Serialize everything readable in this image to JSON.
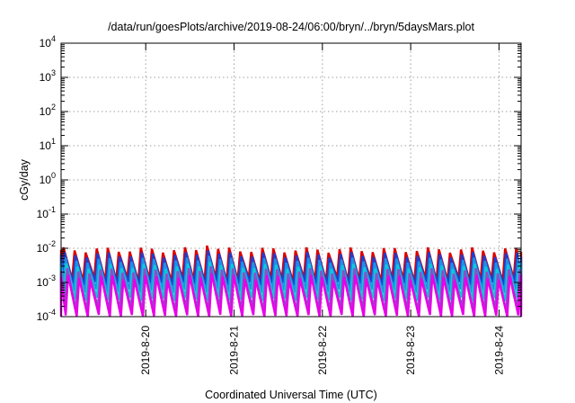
{
  "chart_data": {
    "type": "line",
    "title": "/data/run/goesPlots/archive/2019-08-24/06:00/bryn/../bryn/5daysMars.plot",
    "xlabel": "Coordinated Universal Time (UTC)",
    "ylabel": "cGy/day",
    "x_tick_labels": [
      "2019-8-20",
      "2019-8-21",
      "2019-8-22",
      "2019-8-23",
      "2019-8-24"
    ],
    "y_ticks": [
      {
        "base": "10",
        "exp": "-4"
      },
      {
        "base": "10",
        "exp": "-3"
      },
      {
        "base": "10",
        "exp": "-2"
      },
      {
        "base": "10",
        "exp": "-1"
      },
      {
        "base": "10",
        "exp": "0"
      },
      {
        "base": "10",
        "exp": "1"
      },
      {
        "base": "10",
        "exp": "2"
      },
      {
        "base": "10",
        "exp": "3"
      },
      {
        "base": "10",
        "exp": "4"
      }
    ],
    "yscale": "log",
    "ylim": [
      0.0001,
      10000
    ],
    "xlim": [
      "2019-08-19T01:00",
      "2019-08-24T06:00"
    ],
    "grid": true,
    "period_hours": 3,
    "series": [
      {
        "color": "#dd0000",
        "peak": 0.009,
        "trough": 0.0012,
        "phase_hours": 0.0
      },
      {
        "color": "#1c3fd0",
        "peak": 0.0065,
        "trough": 0.0009,
        "phase_hours": 0.25
      },
      {
        "color": "#1f8fe6",
        "peak": 0.0045,
        "trough": 0.00055,
        "phase_hours": 0.5
      },
      {
        "color": "#10c8d8",
        "peak": 0.003,
        "trough": 0.00032,
        "phase_hours": 0.75
      },
      {
        "color": "#8a50c8",
        "peak": 0.0022,
        "trough": 0.00016,
        "phase_hours": 1.0
      },
      {
        "color": "#e800e8",
        "peak": 0.0014,
        "trough": 0.0001,
        "phase_hours": 1.25
      }
    ]
  }
}
